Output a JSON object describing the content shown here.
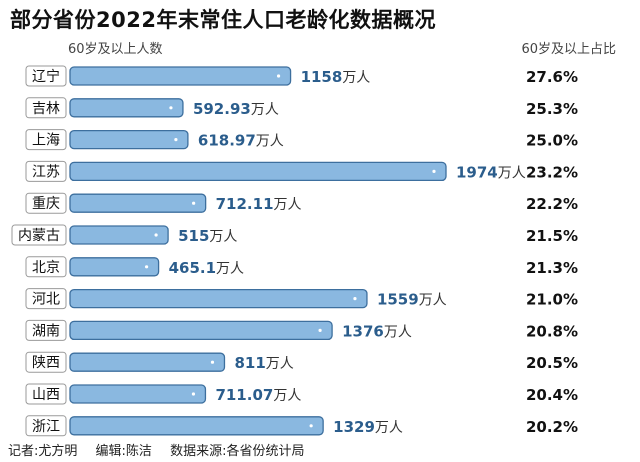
{
  "title": "部分省份2022年末常住人口老龄化数据概况",
  "chart_data": {
    "type": "bar",
    "orientation": "horizontal",
    "header_left": "60岁及以上人数",
    "header_right": "60岁及以上占比",
    "unit": "万人",
    "categories": [
      "辽宁",
      "吉林",
      "上海",
      "江苏",
      "重庆",
      "内蒙古",
      "北京",
      "河北",
      "湖南",
      "陕西",
      "山西",
      "浙江"
    ],
    "value_labels": [
      "1158",
      "592.93",
      "618.97",
      "1974",
      "712.11",
      "515",
      "465.1",
      "1559",
      "1376",
      "811",
      "711.07",
      "1329"
    ],
    "values": [
      1158,
      592.93,
      618.97,
      1974,
      712.11,
      515,
      465.1,
      1559,
      1376,
      811,
      711.07,
      1329
    ],
    "ratios": [
      "27.6%",
      "25.3%",
      "25.0%",
      "23.2%",
      "22.2%",
      "21.5%",
      "21.3%",
      "21.0%",
      "20.8%",
      "20.5%",
      "20.4%",
      "20.2%"
    ],
    "colors": {
      "bar": "#8ab8e0",
      "bar_border": "#3d6f9e",
      "value_text": "#2b5d8c"
    }
  },
  "footer": {
    "reporter": "记者:尤方明",
    "editor": "编辑:陈洁",
    "source": "数据来源:各省份统计局"
  }
}
